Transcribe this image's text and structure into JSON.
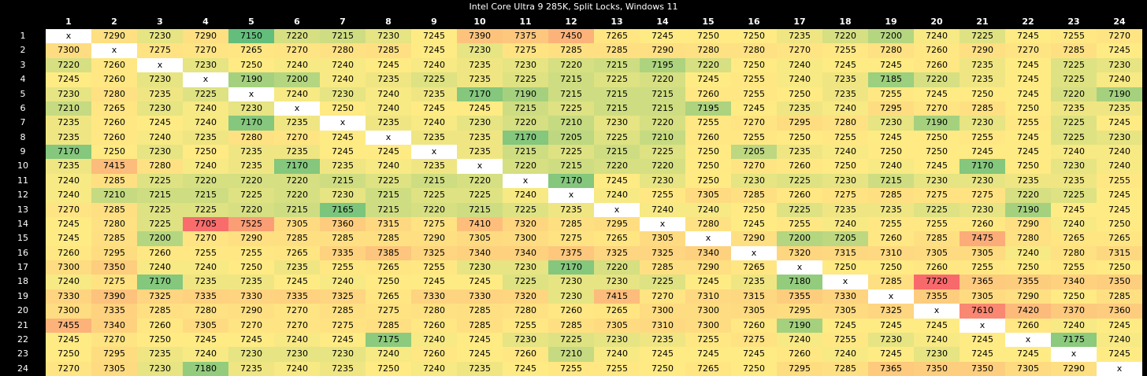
{
  "title": "Intel Core Ultra 9 285K, Split Locks, Windows 11",
  "diagonal_label": "x",
  "colors": {
    "low": "#63be7b",
    "mid": "#ffeb84",
    "high": "#f8696b",
    "diagonal": "#ffffff",
    "background": "#000000",
    "header_text": "#ffffff"
  },
  "chart_data": {
    "type": "heatmap",
    "title": "Intel Core Ultra 9 285K, Split Locks, Windows 11",
    "color_scale": "green-yellow-red (low to high)",
    "x_labels": [
      "1",
      "2",
      "3",
      "4",
      "5",
      "6",
      "7",
      "8",
      "9",
      "10",
      "11",
      "12",
      "13",
      "14",
      "15",
      "16",
      "17",
      "18",
      "19",
      "20",
      "21",
      "22",
      "23",
      "24"
    ],
    "y_labels": [
      "1",
      "2",
      "3",
      "4",
      "5",
      "6",
      "7",
      "8",
      "9",
      "10",
      "11",
      "12",
      "13",
      "14",
      "15",
      "16",
      "17",
      "18",
      "19",
      "20",
      "21",
      "22",
      "23",
      "24"
    ],
    "values": [
      [
        null,
        7290,
        7230,
        7290,
        7150,
        7220,
        7215,
        7230,
        7245,
        7390,
        7375,
        7450,
        7265,
        7245,
        7250,
        7250,
        7235,
        7220,
        7200,
        7240,
        7225,
        7245,
        7255,
        7270
      ],
      [
        7300,
        null,
        7275,
        7270,
        7265,
        7270,
        7280,
        7285,
        7245,
        7230,
        7275,
        7285,
        7285,
        7290,
        7280,
        7280,
        7270,
        7255,
        7280,
        7260,
        7290,
        7270,
        7285,
        7245
      ],
      [
        7220,
        7260,
        null,
        7230,
        7250,
        7240,
        7240,
        7245,
        7240,
        7235,
        7230,
        7220,
        7215,
        7195,
        7220,
        7250,
        7240,
        7245,
        7245,
        7260,
        7235,
        7245,
        7225,
        7230
      ],
      [
        7245,
        7260,
        7230,
        null,
        7190,
        7200,
        7240,
        7235,
        7225,
        7235,
        7225,
        7215,
        7225,
        7220,
        7245,
        7255,
        7240,
        7235,
        7185,
        7220,
        7235,
        7245,
        7225,
        7240
      ],
      [
        7230,
        7280,
        7235,
        7225,
        null,
        7240,
        7230,
        7240,
        7235,
        7170,
        7190,
        7215,
        7215,
        7215,
        7260,
        7255,
        7250,
        7235,
        7255,
        7245,
        7250,
        7245,
        7220,
        7190
      ],
      [
        7210,
        7265,
        7230,
        7240,
        7230,
        null,
        7250,
        7240,
        7245,
        7245,
        7215,
        7225,
        7215,
        7215,
        7195,
        7245,
        7235,
        7240,
        7295,
        7270,
        7285,
        7250,
        7235,
        7235
      ],
      [
        7235,
        7260,
        7245,
        7240,
        7170,
        7235,
        null,
        7235,
        7240,
        7230,
        7220,
        7210,
        7230,
        7220,
        7255,
        7270,
        7295,
        7280,
        7230,
        7190,
        7230,
        7255,
        7225,
        7245
      ],
      [
        7235,
        7260,
        7240,
        7235,
        7280,
        7270,
        7245,
        null,
        7235,
        7235,
        7170,
        7205,
        7225,
        7210,
        7260,
        7255,
        7250,
        7255,
        7245,
        7250,
        7255,
        7245,
        7225,
        7230
      ],
      [
        7170,
        7250,
        7230,
        7250,
        7235,
        7235,
        7245,
        7245,
        null,
        7235,
        7215,
        7225,
        7215,
        7225,
        7250,
        7205,
        7235,
        7240,
        7250,
        7250,
        7245,
        7245,
        7240,
        7240
      ],
      [
        7235,
        7415,
        7280,
        7240,
        7235,
        7170,
        7235,
        7240,
        7235,
        null,
        7220,
        7215,
        7220,
        7220,
        7250,
        7270,
        7260,
        7250,
        7240,
        7245,
        7170,
        7250,
        7230,
        7240
      ],
      [
        7240,
        7285,
        7225,
        7220,
        7220,
        7220,
        7215,
        7225,
        7215,
        7220,
        null,
        7170,
        7245,
        7230,
        7250,
        7230,
        7225,
        7230,
        7215,
        7230,
        7230,
        7235,
        7235,
        7255
      ],
      [
        7240,
        7210,
        7215,
        7215,
        7225,
        7220,
        7230,
        7215,
        7225,
        7225,
        7240,
        null,
        7240,
        7255,
        7305,
        7285,
        7260,
        7275,
        7285,
        7275,
        7275,
        7220,
        7225,
        7245
      ],
      [
        7270,
        7285,
        7225,
        7225,
        7220,
        7215,
        7165,
        7215,
        7220,
        7215,
        7225,
        7235,
        null,
        7240,
        7240,
        7250,
        7225,
        7235,
        7235,
        7225,
        7230,
        7190,
        7245,
        7245
      ],
      [
        7245,
        7280,
        7225,
        7705,
        7525,
        7305,
        7360,
        7315,
        7275,
        7410,
        7320,
        7285,
        7295,
        null,
        7280,
        7245,
        7255,
        7240,
        7255,
        7255,
        7260,
        7290,
        7240,
        7250
      ],
      [
        7245,
        7285,
        7200,
        7270,
        7290,
        7285,
        7285,
        7285,
        7290,
        7305,
        7300,
        7275,
        7265,
        7305,
        null,
        7290,
        7200,
        7205,
        7260,
        7285,
        7475,
        7280,
        7265,
        7265
      ],
      [
        7260,
        7295,
        7260,
        7255,
        7255,
        7265,
        7335,
        7385,
        7325,
        7340,
        7340,
        7375,
        7325,
        7325,
        7340,
        null,
        7320,
        7315,
        7310,
        7305,
        7305,
        7240,
        7280,
        7315
      ],
      [
        7300,
        7350,
        7240,
        7240,
        7250,
        7235,
        7255,
        7265,
        7255,
        7230,
        7230,
        7170,
        7220,
        7285,
        7290,
        7265,
        null,
        7250,
        7250,
        7260,
        7255,
        7250,
        7255,
        7250
      ],
      [
        7240,
        7275,
        7170,
        7235,
        7235,
        7245,
        7240,
        7250,
        7245,
        7245,
        7225,
        7230,
        7230,
        7225,
        7245,
        7235,
        7180,
        null,
        7285,
        7720,
        7365,
        7355,
        7340,
        7350
      ],
      [
        7330,
        7390,
        7325,
        7335,
        7330,
        7335,
        7325,
        7265,
        7330,
        7330,
        7320,
        7230,
        7415,
        7270,
        7310,
        7315,
        7355,
        7330,
        null,
        7355,
        7305,
        7290,
        7250,
        7285
      ],
      [
        7300,
        7335,
        7285,
        7280,
        7290,
        7270,
        7285,
        7275,
        7280,
        7285,
        7280,
        7260,
        7265,
        7300,
        7300,
        7305,
        7295,
        7305,
        7325,
        null,
        7610,
        7420,
        7370,
        7360
      ],
      [
        7455,
        7340,
        7260,
        7305,
        7270,
        7270,
        7275,
        7285,
        7260,
        7285,
        7255,
        7285,
        7305,
        7310,
        7300,
        7260,
        7190,
        7245,
        7245,
        7245,
        null,
        7260,
        7240,
        7245
      ],
      [
        7245,
        7270,
        7250,
        7245,
        7245,
        7240,
        7245,
        7175,
        7240,
        7245,
        7230,
        7225,
        7230,
        7235,
        7255,
        7275,
        7240,
        7255,
        7230,
        7240,
        7245,
        null,
        7175,
        7240
      ],
      [
        7250,
        7295,
        7235,
        7240,
        7230,
        7230,
        7230,
        7240,
        7260,
        7245,
        7260,
        7210,
        7240,
        7245,
        7245,
        7245,
        7260,
        7240,
        7245,
        7230,
        7245,
        7245,
        null,
        7245
      ],
      [
        7270,
        7305,
        7230,
        7180,
        7235,
        7240,
        7235,
        7250,
        7240,
        7235,
        7245,
        7255,
        7255,
        7250,
        7265,
        7250,
        7295,
        7285,
        7365,
        7350,
        7350,
        7305,
        7290,
        null
      ]
    ]
  }
}
